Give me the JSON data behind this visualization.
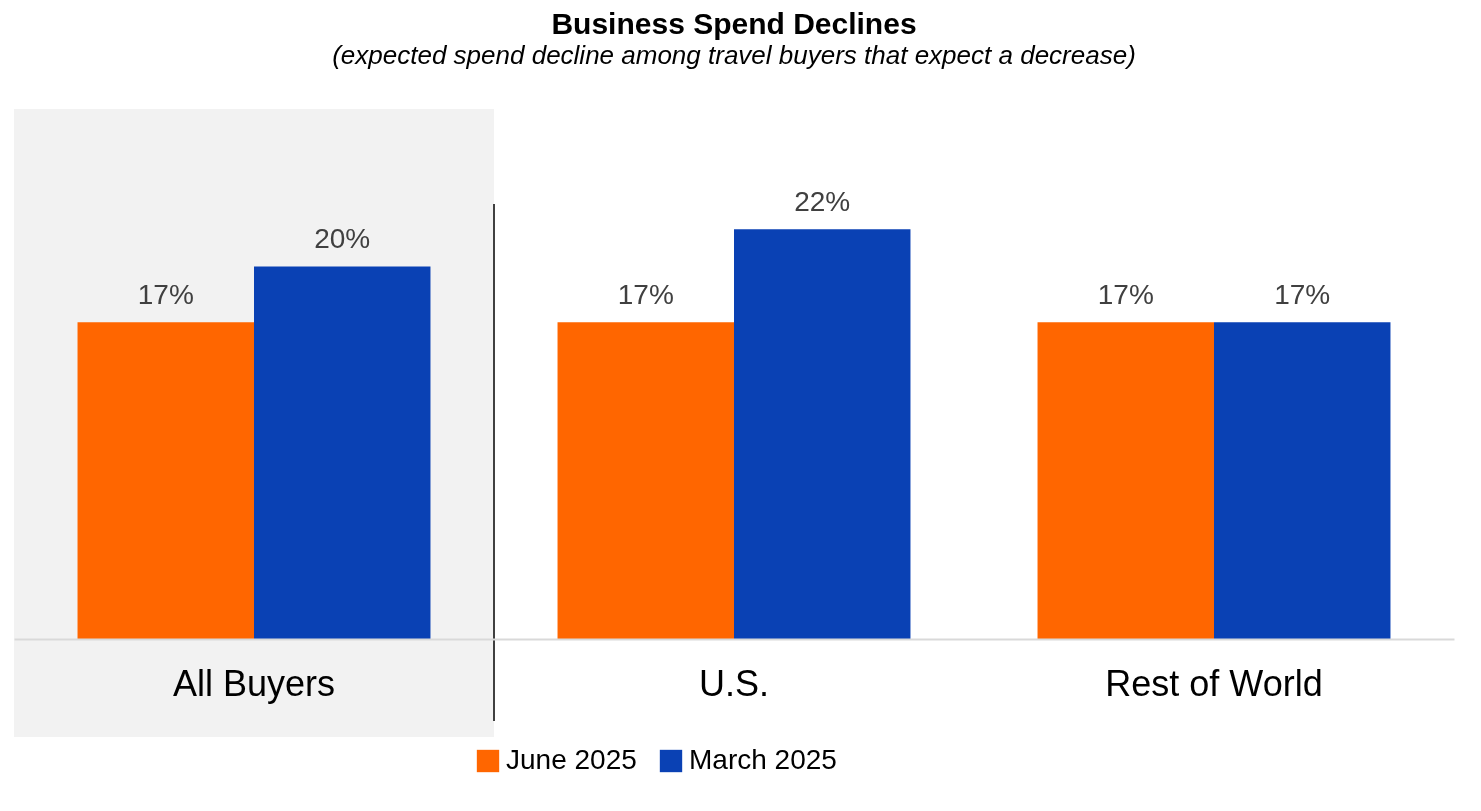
{
  "chart_data": {
    "type": "bar",
    "title": "Business Spend Declines",
    "subtitle": "(expected spend decline among travel buyers that expect a decrease)",
    "categories": [
      "All Buyers",
      "U.S.",
      "Rest of World"
    ],
    "series": [
      {
        "name": "June 2025",
        "color": "#ff6600",
        "values": [
          17,
          17,
          17
        ],
        "value_labels": [
          "17%",
          "17%",
          "17%"
        ]
      },
      {
        "name": "March 2025",
        "color": "#0a41b4",
        "values": [
          20,
          22,
          17
        ],
        "value_labels": [
          "20%",
          "22%",
          "17%"
        ]
      }
    ],
    "bands": [
      {
        "axis": "x",
        "from": "All Buyers",
        "to": "All Buyers",
        "color": "#f2f2f2"
      }
    ],
    "legend": "bottom"
  }
}
